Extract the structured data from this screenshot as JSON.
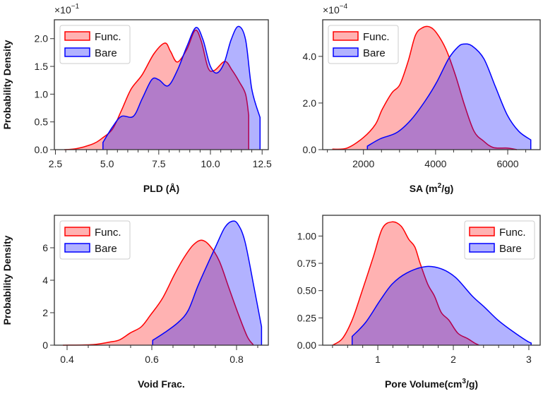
{
  "colors": {
    "func_line": "#ff0000",
    "func_fill": "rgba(255,0,0,0.3)",
    "bare_line": "#0000ff",
    "bare_fill": "rgba(0,0,255,0.3)"
  },
  "legend_labels": [
    "Func.",
    "Bare"
  ],
  "chart_data": [
    {
      "type": "area",
      "xlabel": {
        "text": "PLD (Å)",
        "sup": "",
        "after": ""
      },
      "ylabel": "Probability Density",
      "y_multiplier": {
        "base": "×10",
        "exp": "−1"
      },
      "xlim": [
        2.45,
        12.8
      ],
      "ylim": [
        0,
        2.34
      ],
      "xticks": [
        2.5,
        5.0,
        7.5,
        10.0,
        12.5
      ],
      "xtick_labels": [
        "2.5",
        "5.0",
        "7.5",
        "10.0",
        "12.5"
      ],
      "xminor": 0.5,
      "yticks": [
        0,
        0.5,
        1.0,
        1.5,
        2.0
      ],
      "ytick_labels": [
        "0.0",
        "0.5",
        "1.0",
        "1.5",
        "2.0"
      ],
      "legend": "top-left",
      "series": [
        {
          "name": "Func.",
          "x": [
            2.93,
            3.55,
            4.35,
            4.74,
            5.26,
            5.7,
            6.16,
            6.7,
            7.27,
            7.8,
            8.07,
            8.4,
            8.86,
            9.26,
            9.55,
            9.89,
            10.2,
            10.7,
            11.05,
            11.4,
            11.7,
            11.85
          ],
          "y": [
            0,
            0.02,
            0.11,
            0.2,
            0.37,
            0.71,
            1.09,
            1.35,
            1.73,
            1.92,
            1.77,
            1.58,
            1.81,
            2.15,
            1.96,
            1.47,
            1.43,
            1.59,
            1.43,
            1.22,
            1.0,
            0.62
          ]
        },
        {
          "name": "Bare",
          "x": [
            4.8,
            5.26,
            5.7,
            6.27,
            6.7,
            7.16,
            7.5,
            7.95,
            8.4,
            8.86,
            9.3,
            9.64,
            9.98,
            10.3,
            10.66,
            11.0,
            11.35,
            11.7,
            12.0,
            12.4
          ],
          "y": [
            0.13,
            0.41,
            0.6,
            0.6,
            0.92,
            1.26,
            1.26,
            1.15,
            1.43,
            1.86,
            2.2,
            1.98,
            1.52,
            1.38,
            1.56,
            1.98,
            2.22,
            1.98,
            1.09,
            0.58
          ]
        }
      ]
    },
    {
      "type": "area",
      "xlabel": {
        "text": "SA (m",
        "sup": "2",
        "after": "/g)"
      },
      "ylabel": "",
      "y_multiplier": {
        "base": "×10",
        "exp": "−4"
      },
      "xlim": [
        870,
        6900
      ],
      "ylim": [
        0,
        5.57
      ],
      "xticks": [
        2000,
        4000,
        6000
      ],
      "xtick_labels": [
        "2000",
        "4000",
        "6000"
      ],
      "xminor": 500,
      "yticks": [
        0,
        2,
        4
      ],
      "ytick_labels": [
        "0.0",
        "2.0",
        "4.0"
      ],
      "legend": "top-left",
      "series": [
        {
          "name": "Func.",
          "x": [
            1150,
            1550,
            2000,
            2330,
            2520,
            2790,
            3010,
            3240,
            3440,
            3640,
            3840,
            4030,
            4290,
            4550,
            4810,
            5070,
            5330,
            5600,
            5990,
            6250
          ],
          "y": [
            0.02,
            0.07,
            0.52,
            1.08,
            1.73,
            2.44,
            2.79,
            3.8,
            4.9,
            5.23,
            5.26,
            5.0,
            4.3,
            3.19,
            1.88,
            0.78,
            0.37,
            0.09,
            0.07,
            0
          ]
        },
        {
          "name": "Bare",
          "x": [
            2110,
            2470,
            2920,
            3320,
            3710,
            4030,
            4360,
            4620,
            4780,
            5010,
            5340,
            5660,
            5990,
            6310,
            6640
          ],
          "y": [
            0.15,
            0.47,
            0.73,
            1.28,
            2.09,
            2.89,
            3.9,
            4.4,
            4.53,
            4.45,
            3.9,
            2.69,
            1.48,
            0.78,
            0.42
          ]
        }
      ]
    },
    {
      "type": "area",
      "xlabel": {
        "text": "Void Frac.",
        "sup": "",
        "after": ""
      },
      "ylabel": "Probability Density",
      "y_multiplier": null,
      "xlim": [
        0.37,
        0.875
      ],
      "ylim": [
        0,
        8.0
      ],
      "xticks": [
        0.4,
        0.6,
        0.8
      ],
      "xtick_labels": [
        "0.4",
        "0.6",
        "0.8"
      ],
      "xminor": 0.05,
      "yticks": [
        0,
        2,
        4,
        6
      ],
      "ytick_labels": [
        "0",
        "2",
        "4",
        "6"
      ],
      "legend": "top-left",
      "series": [
        {
          "name": "Func.",
          "x": [
            0.39,
            0.462,
            0.5,
            0.524,
            0.55,
            0.575,
            0.597,
            0.625,
            0.653,
            0.675,
            0.697,
            0.717,
            0.736,
            0.759,
            0.781,
            0.803,
            0.825,
            0.839
          ],
          "y": [
            0,
            0.04,
            0.19,
            0.33,
            0.77,
            1.13,
            1.86,
            2.88,
            4.33,
            5.35,
            6.15,
            6.47,
            6.15,
            5.2,
            3.6,
            2.0,
            0.55,
            0.04
          ]
        },
        {
          "name": "Bare",
          "x": [
            0.602,
            0.63,
            0.663,
            0.686,
            0.708,
            0.73,
            0.753,
            0.772,
            0.789,
            0.803,
            0.82,
            0.842,
            0.859
          ],
          "y": [
            0.3,
            0.77,
            1.42,
            2.15,
            3.6,
            4.9,
            6.2,
            7.24,
            7.63,
            7.46,
            6.37,
            3.46,
            1.13
          ]
        }
      ]
    },
    {
      "type": "area",
      "xlabel": {
        "text": "Pore Volume(cm",
        "sup": "3",
        "after": "/g)"
      },
      "ylabel": "",
      "y_multiplier": null,
      "xlim": [
        0.27,
        3.15
      ],
      "ylim": [
        0,
        1.19
      ],
      "xticks": [
        1,
        2,
        3
      ],
      "xtick_labels": [
        "1",
        "2",
        "3"
      ],
      "xminor": 0.2,
      "yticks": [
        0,
        0.25,
        0.5,
        0.75,
        1.0
      ],
      "ytick_labels": [
        "0.00",
        "0.25",
        "0.50",
        "0.75",
        "1.00"
      ],
      "legend": "top-right",
      "series": [
        {
          "name": "Func.",
          "x": [
            0.4,
            0.53,
            0.66,
            0.78,
            0.94,
            1.06,
            1.19,
            1.31,
            1.41,
            1.49,
            1.56,
            1.66,
            1.75,
            1.84,
            1.94,
            2.06,
            2.19,
            2.28,
            2.34
          ],
          "y": [
            0,
            0.06,
            0.23,
            0.47,
            0.81,
            1.07,
            1.13,
            1.09,
            0.97,
            0.9,
            0.75,
            0.56,
            0.45,
            0.3,
            0.23,
            0.11,
            0.06,
            0.02,
            0
          ]
        },
        {
          "name": "Bare",
          "x": [
            0.66,
            0.84,
            1.03,
            1.19,
            1.38,
            1.63,
            1.84,
            2.03,
            2.25,
            2.41,
            2.59,
            2.78,
            2.97,
            3.03
          ],
          "y": [
            0.08,
            0.21,
            0.41,
            0.56,
            0.66,
            0.72,
            0.7,
            0.62,
            0.45,
            0.35,
            0.23,
            0.13,
            0.04,
            0.02
          ]
        }
      ]
    }
  ]
}
